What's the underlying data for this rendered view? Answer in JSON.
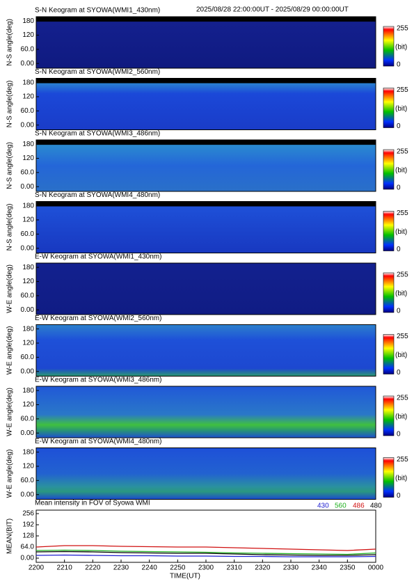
{
  "header": "2025/08/28 22:00:00UT - 2025/08/29 00:00:00UT",
  "keograms": [
    {
      "title": "S-N Keogram at SYOWA(WMI1_430nm)",
      "ylabel": "N-S angle(deg)",
      "ylim": [
        -20,
        198
      ],
      "yticks": [
        {
          "value": 0,
          "label": "0.00"
        },
        {
          "value": 60,
          "label": "60.0"
        },
        120,
        180
      ],
      "colorbar": {
        "max": 255,
        "unit": "(bit)",
        "min": 0
      }
    },
    {
      "title": "S-N Keogram at SYOWA(WMI2_560nm)",
      "ylabel": "N-S angle(deg)",
      "ylim": [
        -20,
        198
      ],
      "yticks": [
        {
          "value": 0,
          "label": "0.00"
        },
        {
          "value": 60,
          "label": "60.0"
        },
        120,
        180
      ],
      "colorbar": {
        "max": 255,
        "unit": "(bit)",
        "min": 0
      }
    },
    {
      "title": "S-N Keogram at SYOWA(WMI3_486nm)",
      "ylabel": "N-S angle(deg)",
      "ylim": [
        -20,
        198
      ],
      "yticks": [
        {
          "value": 0,
          "label": "0.00"
        },
        {
          "value": 60,
          "label": "60.0"
        },
        120,
        180
      ],
      "colorbar": {
        "max": 255,
        "unit": "(bit)",
        "min": 0
      }
    },
    {
      "title": "S-N Keogram at SYOWA(WMI4_480nm)",
      "ylabel": "N-S angle(deg)",
      "ylim": [
        -20,
        198
      ],
      "yticks": [
        {
          "value": 0,
          "label": "0.00"
        },
        {
          "value": 60,
          "label": "60.0"
        },
        120,
        180
      ],
      "colorbar": {
        "max": 255,
        "unit": "(bit)",
        "min": 0
      }
    },
    {
      "title": "E-W Keogram at SYOWA(WMI1_430nm)",
      "ylabel": "W-E angle(deg)",
      "ylim": [
        -20,
        198
      ],
      "yticks": [
        {
          "value": 0,
          "label": "0.00"
        },
        {
          "value": 60,
          "label": "60.0"
        },
        120,
        180
      ],
      "colorbar": {
        "max": 255,
        "unit": "(bit)",
        "min": 0
      }
    },
    {
      "title": "E-W Keogram at SYOWA(WMI2_560nm)",
      "ylabel": "W-E angle(deg)",
      "ylim": [
        -20,
        198
      ],
      "yticks": [
        {
          "value": 0,
          "label": "0.00"
        },
        {
          "value": 60,
          "label": "60.0"
        },
        120,
        180
      ],
      "colorbar": {
        "max": 255,
        "unit": "(bit)",
        "min": 0
      }
    },
    {
      "title": "E-W Keogram at SYOWA(WMI3_486nm)",
      "ylabel": "W-E angle(deg)",
      "ylim": [
        -20,
        198
      ],
      "yticks": [
        {
          "value": 0,
          "label": "0.00"
        },
        {
          "value": 60,
          "label": "60.0"
        },
        120,
        180
      ],
      "colorbar": {
        "max": 255,
        "unit": "(bit)",
        "min": 0
      }
    },
    {
      "title": "E-W Keogram at SYOWA(WMI4_480nm)",
      "ylabel": "W-E angle(deg)",
      "ylim": [
        -20,
        198
      ],
      "yticks": [
        {
          "value": 0,
          "label": "0.00"
        },
        {
          "value": 60,
          "label": "60.0"
        },
        120,
        180
      ],
      "colorbar": {
        "max": 255,
        "unit": "(bit)",
        "min": 0
      }
    }
  ],
  "chart_data": {
    "type": "line",
    "title": "Mean intensity in FOV of Syowa WMI",
    "ylabel": "MEAN(BIT)",
    "xlabel": "TIME(UT)",
    "x": [
      0,
      10,
      20,
      30,
      40,
      50,
      60,
      70,
      80,
      90,
      100,
      110,
      120
    ],
    "xlim": [
      0,
      120
    ],
    "xticks": [
      {
        "value": 0,
        "label": "2200"
      },
      {
        "value": 10,
        "label": "2210"
      },
      {
        "value": 20,
        "label": "2220"
      },
      {
        "value": 30,
        "label": "2230"
      },
      {
        "value": 40,
        "label": "2240"
      },
      {
        "value": 50,
        "label": "2250"
      },
      {
        "value": 60,
        "label": "2300"
      },
      {
        "value": 70,
        "label": "2310"
      },
      {
        "value": 80,
        "label": "2320"
      },
      {
        "value": 90,
        "label": "2330"
      },
      {
        "value": 100,
        "label": "2340"
      },
      {
        "value": 110,
        "label": "2350"
      },
      {
        "value": 120,
        "label": "0000"
      }
    ],
    "ylim": [
      -24,
      276
    ],
    "yticks": [
      {
        "value": 0,
        "label": "0.00"
      },
      {
        "value": 64,
        "label": "64.0"
      },
      128,
      192,
      256
    ],
    "series": [
      {
        "name": "430",
        "color": "#1f1fd0",
        "values": [
          16,
          18,
          16,
          14,
          14,
          12,
          12,
          10,
          10,
          8,
          8,
          8,
          10
        ]
      },
      {
        "name": "560",
        "color": "#20b020",
        "values": [
          44,
          46,
          44,
          40,
          38,
          36,
          34,
          30,
          28,
          26,
          24,
          22,
          30
        ]
      },
      {
        "name": "486",
        "color": "#d01010",
        "values": [
          64,
          72,
          72,
          68,
          66,
          64,
          64,
          60,
          56,
          52,
          48,
          44,
          52
        ]
      },
      {
        "name": "480",
        "color": "#000000",
        "values": [
          36,
          38,
          36,
          32,
          30,
          28,
          28,
          24,
          20,
          18,
          16,
          16,
          20
        ]
      }
    ]
  }
}
